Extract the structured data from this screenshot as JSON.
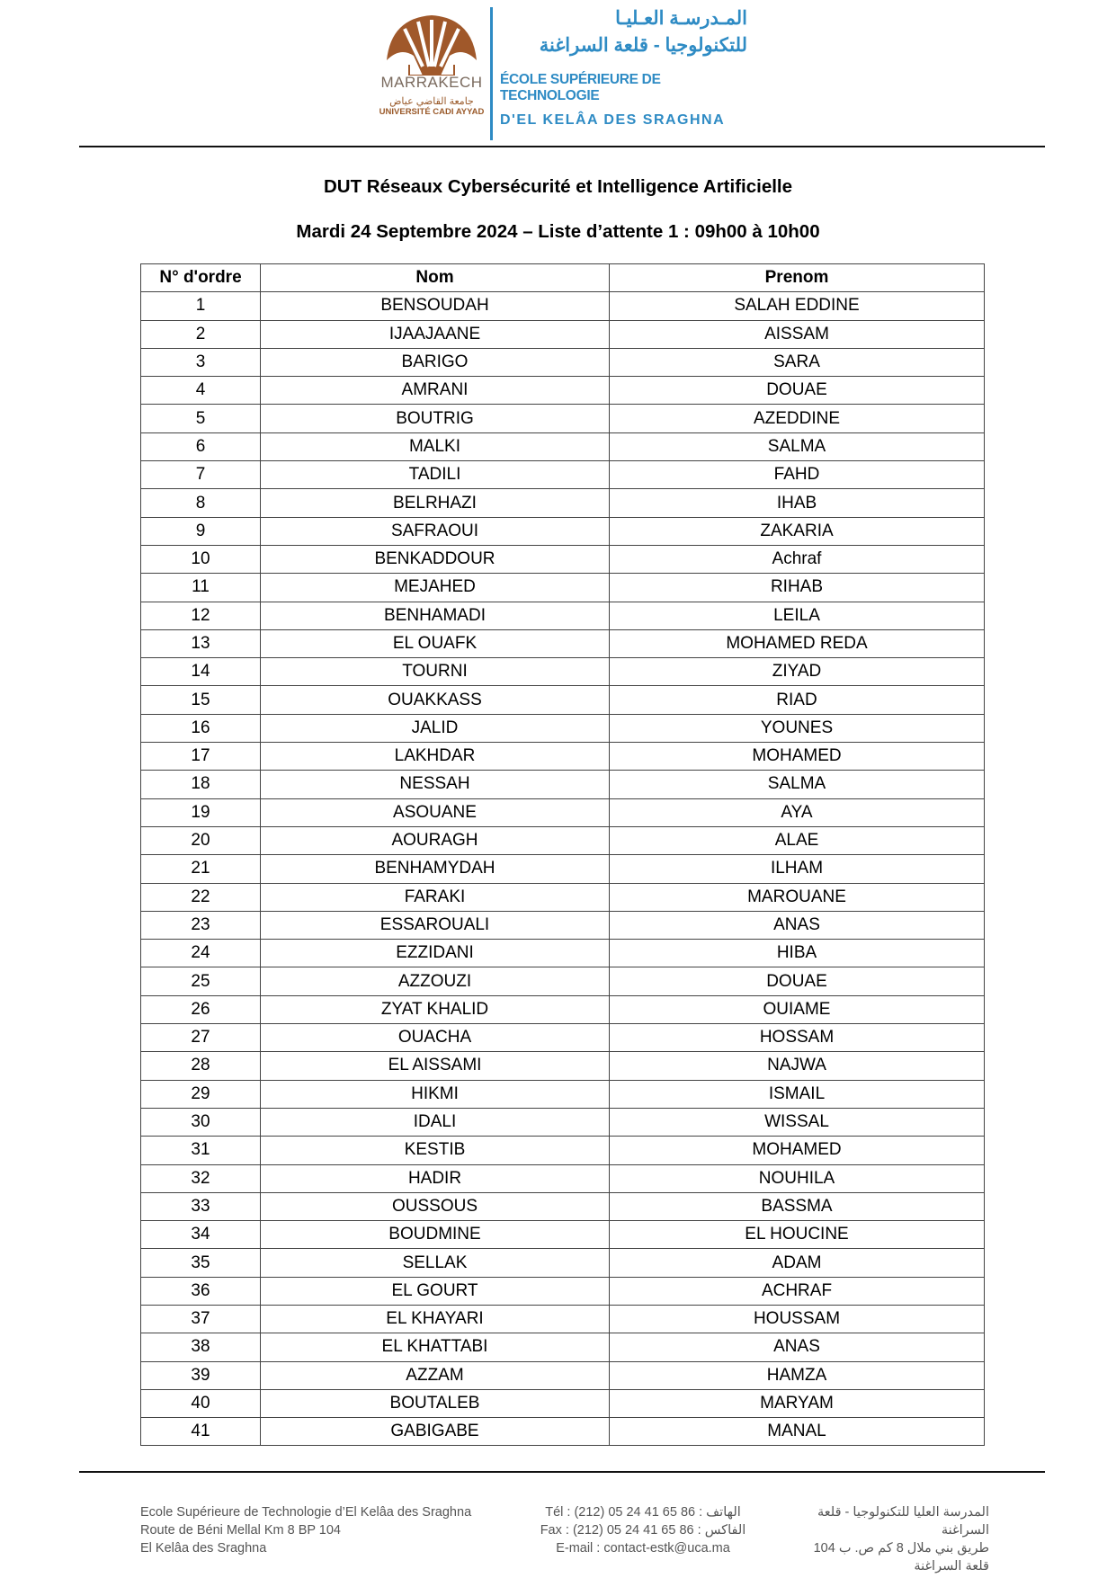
{
  "header": {
    "logo": {
      "city": "MARRAKECH",
      "university_ar": "جامعة القاضي عياض",
      "university": "UNIVERSITÉ CADI AYYAD",
      "colors": {
        "brown": "#a0582a",
        "blue": "#2e8bc4"
      }
    },
    "school": {
      "name_ar_line1": "المـدرسـة العـليـا",
      "name_ar_line2": "للتكنولوجيا - قلعة السراغنة",
      "name_fr_line1": "ÉCOLE SUPÉRIEURE DE TECHNOLOGIE",
      "name_fr_line2": "D'EL KELÂA DES SRAGHNA"
    }
  },
  "title": "DUT Réseaux Cybersécurité et Intelligence Artificielle",
  "subtitle": "Mardi 24 Septembre 2024 – Liste d’attente 1 : 09h00 à 10h00",
  "table": {
    "headers": [
      "N° d'ordre",
      "Nom",
      "Prenom"
    ],
    "rows": [
      [
        "1",
        "BENSOUDAH",
        "SALAH EDDINE"
      ],
      [
        "2",
        "IJAAJAANE",
        "AISSAM"
      ],
      [
        "3",
        "BARIGO",
        "SARA"
      ],
      [
        "4",
        "AMRANI",
        "DOUAE"
      ],
      [
        "5",
        "BOUTRIG",
        "AZEDDINE"
      ],
      [
        "6",
        "MALKI",
        "SALMA"
      ],
      [
        "7",
        "TADILI",
        "FAHD"
      ],
      [
        "8",
        "BELRHAZI",
        "IHAB"
      ],
      [
        "9",
        "SAFRAOUI",
        "ZAKARIA"
      ],
      [
        "10",
        "BENKADDOUR",
        "Achraf"
      ],
      [
        "11",
        "MEJAHED",
        "RIHAB"
      ],
      [
        "12",
        "BENHAMADI",
        "LEILA"
      ],
      [
        "13",
        "EL OUAFK",
        "MOHAMED REDA"
      ],
      [
        "14",
        "TOURNI",
        "ZIYAD"
      ],
      [
        "15",
        "OUAKKASS",
        "RIAD"
      ],
      [
        "16",
        "JALID",
        "YOUNES"
      ],
      [
        "17",
        "LAKHDAR",
        "MOHAMED"
      ],
      [
        "18",
        "NESSAH",
        "SALMA"
      ],
      [
        "19",
        "ASOUANE",
        "AYA"
      ],
      [
        "20",
        "AOURAGH",
        "ALAE"
      ],
      [
        "21",
        "BENHAMYDAH",
        "ILHAM"
      ],
      [
        "22",
        "FARAKI",
        "MAROUANE"
      ],
      [
        "23",
        "ESSAROUALI",
        "ANAS"
      ],
      [
        "24",
        "EZZIDANI",
        "HIBA"
      ],
      [
        "25",
        "AZZOUZI",
        "DOUAE"
      ],
      [
        "26",
        "ZYAT KHALID",
        "OUIAME"
      ],
      [
        "27",
        "OUACHA",
        "HOSSAM"
      ],
      [
        "28",
        "EL AISSAMI",
        "NAJWA"
      ],
      [
        "29",
        "HIKMI",
        "ISMAIL"
      ],
      [
        "30",
        "IDALI",
        "WISSAL"
      ],
      [
        "31",
        "KESTIB",
        "MOHAMED"
      ],
      [
        "32",
        "HADIR",
        "NOUHILA"
      ],
      [
        "33",
        "OUSSOUS",
        "BASSMA"
      ],
      [
        "34",
        "BOUDMINE",
        "EL HOUCINE"
      ],
      [
        "35",
        "SELLAK",
        "ADAM"
      ],
      [
        "36",
        "EL GOURT",
        "ACHRAF"
      ],
      [
        "37",
        "EL KHAYARI",
        "HOUSSAM"
      ],
      [
        "38",
        "EL KHATTABI",
        "ANAS"
      ],
      [
        "39",
        "AZZAM",
        "HAMZA"
      ],
      [
        "40",
        "BOUTALEB",
        "MARYAM"
      ],
      [
        "41",
        "GABIGABE",
        "MANAL"
      ]
    ]
  },
  "footer": {
    "address_fr": [
      "Ecole Supérieure de Technologie d’El Kelâa des Sraghna",
      "Route de Béni Mellal Km 8 BP 104",
      "El Kelâa des Sraghna"
    ],
    "contact": [
      "Tél : (212) 05 24 41 65 86 : الهاتف",
      "Fax : (212) 05 24 41 65 86 : الفاكس",
      "E-mail : contact-estk@uca.ma"
    ],
    "address_ar": [
      "المدرسة العليا للتكنولوجيا - قلعة السراغنة",
      "طريق بني ملال 8 كم ص. ب 104",
      "قلعة السراغنة"
    ]
  }
}
